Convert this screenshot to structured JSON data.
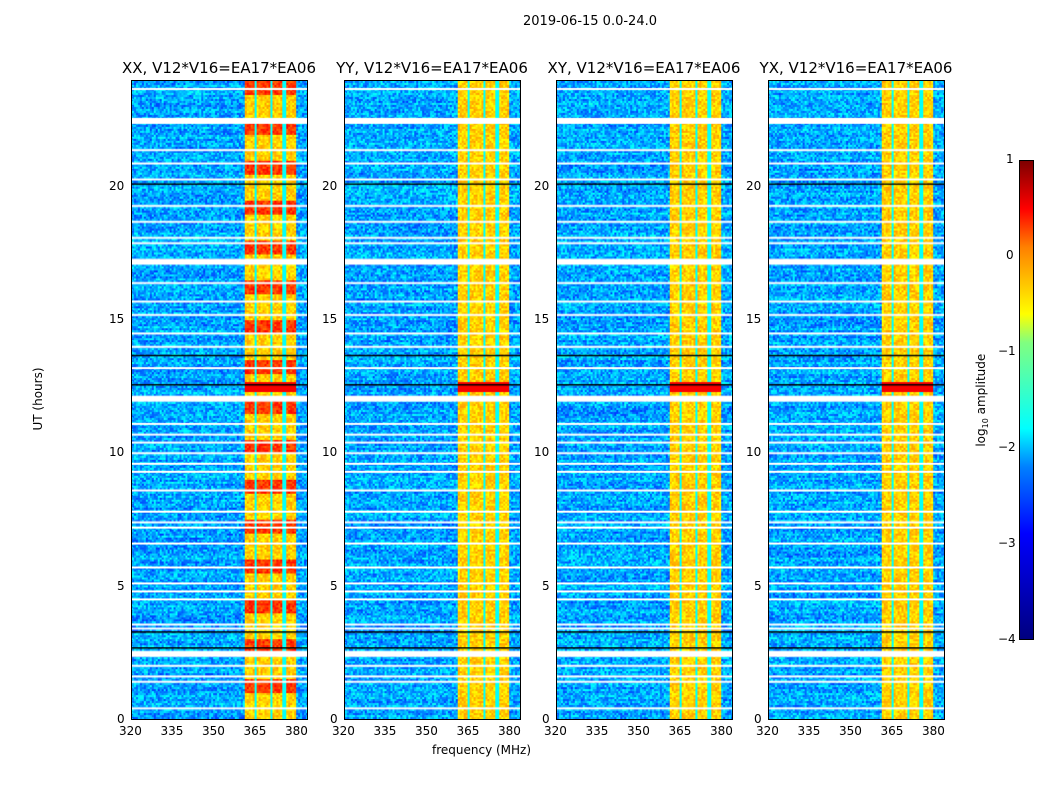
{
  "suptitle": "2019-06-15 0.0-24.0",
  "chart_data": {
    "type": "heatmap",
    "title": "2019-06-15 0.0-24.0",
    "xlabel": "frequency (MHz)",
    "ylabel": "UT (hours)",
    "xlim": [
      320,
      384
    ],
    "ylim": [
      0,
      24
    ],
    "xticks": [
      "320",
      "335",
      "350",
      "365",
      "380"
    ],
    "yticks": [
      "0",
      "5",
      "10",
      "15",
      "20"
    ],
    "panels": [
      {
        "title": "XX, V12*V16=EA17*EA06"
      },
      {
        "title": "YY, V12*V16=EA17*EA06"
      },
      {
        "title": "XY, V12*V16=EA17*EA06"
      },
      {
        "title": "YX, V12*V16=EA17*EA06"
      }
    ],
    "rfi_band_mhz": [
      360.5,
      380
    ],
    "rfi_dark_channels_mhz": [
      365,
      370.5,
      375.5
    ],
    "flagged_times_hours": [
      0.4,
      1.4,
      1.6,
      2.0,
      2.45,
      3.4,
      3.55,
      4.5,
      4.8,
      5.1,
      5.7,
      6.6,
      7.2,
      7.4,
      7.8,
      8.6,
      9.3,
      9.6,
      10.0,
      10.4,
      10.7,
      11.1,
      12.05,
      13.2,
      14.0,
      14.5,
      15.2,
      15.7,
      16.4,
      17.2,
      17.9,
      18.1,
      18.7,
      19.3,
      20.3,
      20.9,
      21.4,
      22.5,
      23.7
    ],
    "colorbar": {
      "label": "log10 amplitude",
      "label_main": "log",
      "label_sub": "10",
      "label_rest": " amplitude",
      "range": [
        -4,
        1
      ],
      "ticks": [
        "1",
        "0",
        "−1",
        "−2",
        "−3",
        "−4"
      ],
      "colormap": "jet"
    }
  }
}
